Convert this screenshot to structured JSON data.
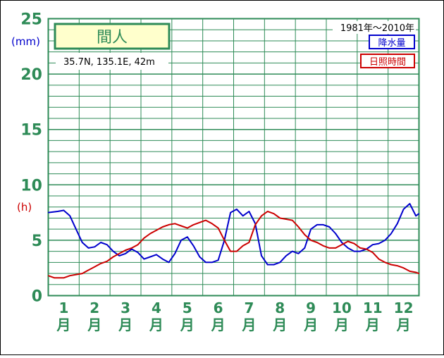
{
  "chart_data": {
    "type": "line",
    "title": "間人",
    "location": "35.7N,  135.1E,  42m",
    "period": "1981年〜2010年",
    "y_left_label": "(mm)",
    "y_right_unit_label": "(h)",
    "y_ticks": [
      "0",
      "5",
      "10",
      "15",
      "20",
      "25"
    ],
    "x_month_numbers": [
      "1",
      "2",
      "3",
      "4",
      "5",
      "6",
      "7",
      "8",
      "9",
      "10",
      "11",
      "12"
    ],
    "x_month_suffix": "月",
    "xlim": [
      0.5,
      12.5
    ],
    "ylim": [
      0,
      25
    ],
    "grid": true,
    "legend_placement": "top-right",
    "series": [
      {
        "name": "降水量",
        "color": "#0000cc",
        "x": [
          0.5,
          0.8,
          1.0,
          1.2,
          1.4,
          1.6,
          1.8,
          2.0,
          2.2,
          2.4,
          2.6,
          2.8,
          3.0,
          3.2,
          3.4,
          3.6,
          3.8,
          4.0,
          4.2,
          4.4,
          4.6,
          4.8,
          5.0,
          5.2,
          5.4,
          5.6,
          5.8,
          6.0,
          6.2,
          6.4,
          6.6,
          6.8,
          7.0,
          7.2,
          7.4,
          7.6,
          7.8,
          8.0,
          8.2,
          8.4,
          8.6,
          8.8,
          9.0,
          9.2,
          9.4,
          9.6,
          9.8,
          10.0,
          10.2,
          10.4,
          10.6,
          10.8,
          11.0,
          11.2,
          11.4,
          11.6,
          11.8,
          12.0,
          12.2,
          12.4,
          12.5
        ],
        "values": [
          7.5,
          7.6,
          7.7,
          7.2,
          6.0,
          4.8,
          4.3,
          4.4,
          4.8,
          4.6,
          4.0,
          3.6,
          3.8,
          4.2,
          3.9,
          3.3,
          3.5,
          3.7,
          3.3,
          3.0,
          3.8,
          5.0,
          5.3,
          4.5,
          3.5,
          3.0,
          3.0,
          3.2,
          5.0,
          7.5,
          7.8,
          7.2,
          7.6,
          6.5,
          3.6,
          2.8,
          2.8,
          3.0,
          3.6,
          4.0,
          3.8,
          4.3,
          6.0,
          6.4,
          6.4,
          6.2,
          5.6,
          4.8,
          4.3,
          4.0,
          4.0,
          4.2,
          4.6,
          4.7,
          5.0,
          5.6,
          6.5,
          7.8,
          8.3,
          7.2,
          7.4
        ]
      },
      {
        "name": "日照時間",
        "color": "#cc0000",
        "x": [
          0.5,
          0.7,
          1.0,
          1.2,
          1.4,
          1.6,
          1.8,
          2.0,
          2.2,
          2.4,
          2.6,
          2.8,
          3.0,
          3.2,
          3.4,
          3.6,
          3.8,
          4.0,
          4.2,
          4.4,
          4.6,
          4.8,
          5.0,
          5.2,
          5.4,
          5.6,
          5.8,
          6.0,
          6.2,
          6.4,
          6.6,
          6.8,
          7.0,
          7.2,
          7.4,
          7.6,
          7.8,
          8.0,
          8.2,
          8.4,
          8.6,
          8.8,
          9.0,
          9.2,
          9.4,
          9.6,
          9.8,
          10.0,
          10.2,
          10.4,
          10.6,
          10.8,
          11.0,
          11.2,
          11.4,
          11.6,
          11.8,
          12.0,
          12.2,
          12.4,
          12.5
        ],
        "values": [
          1.8,
          1.6,
          1.6,
          1.8,
          1.9,
          2.0,
          2.3,
          2.6,
          2.9,
          3.1,
          3.5,
          3.8,
          4.1,
          4.3,
          4.6,
          5.2,
          5.6,
          5.9,
          6.2,
          6.4,
          6.5,
          6.3,
          6.1,
          6.4,
          6.6,
          6.8,
          6.5,
          6.1,
          5.0,
          4.0,
          4.0,
          4.5,
          4.8,
          6.4,
          7.2,
          7.6,
          7.4,
          7.0,
          6.9,
          6.8,
          6.2,
          5.5,
          5.0,
          4.8,
          4.5,
          4.3,
          4.3,
          4.6,
          4.9,
          4.7,
          4.3,
          4.2,
          3.9,
          3.3,
          3.0,
          2.8,
          2.7,
          2.5,
          2.2,
          2.1,
          2.0
        ]
      }
    ]
  }
}
